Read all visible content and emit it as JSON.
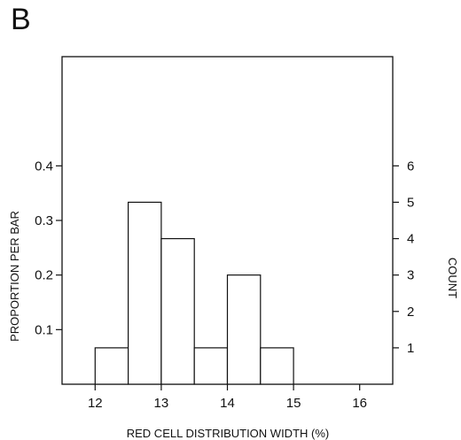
{
  "figure": {
    "panel_label": "B"
  },
  "chart_data": {
    "type": "bar",
    "subtype": "histogram",
    "title": "",
    "xlabel": "RED CELL DISTRIBUTION WIDTH (%)",
    "ylabel": "PROPORTION PER BAR",
    "y2label": "COUNT",
    "xlim": [
      11.5,
      16.5
    ],
    "ylim": [
      0,
      0.6
    ],
    "y2lim": [
      0,
      9
    ],
    "x_ticks": [
      12,
      13,
      14,
      15,
      16
    ],
    "y_ticks": [
      0.1,
      0.2,
      0.3,
      0.4
    ],
    "y_tick_labels": [
      "0.1",
      "0.2",
      "0.3",
      "0.4"
    ],
    "y2_ticks": [
      1,
      2,
      3,
      4,
      5,
      6
    ],
    "grid": false,
    "bins": [
      {
        "x0": 12.0,
        "x1": 12.5,
        "count": 1,
        "proportion": 0.067
      },
      {
        "x0": 12.5,
        "x1": 13.0,
        "count": 5,
        "proportion": 0.333
      },
      {
        "x0": 13.0,
        "x1": 13.5,
        "count": 4,
        "proportion": 0.267
      },
      {
        "x0": 13.5,
        "x1": 14.0,
        "count": 1,
        "proportion": 0.067
      },
      {
        "x0": 14.0,
        "x1": 14.5,
        "count": 3,
        "proportion": 0.2
      },
      {
        "x0": 14.5,
        "x1": 15.0,
        "count": 1,
        "proportion": 0.067
      }
    ],
    "colors": {
      "bar_fill": "#ffffff",
      "stroke": "#111111"
    }
  }
}
